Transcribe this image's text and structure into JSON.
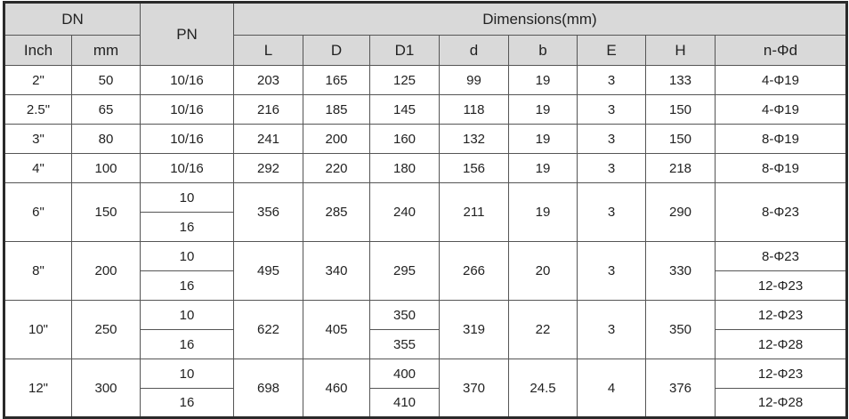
{
  "header": {
    "dn": "DN",
    "pn": "PN",
    "dimensions": "Dimensions(mm)",
    "inch": "Inch",
    "mm": "mm",
    "cols": [
      "L",
      "D",
      "D1",
      "d",
      "b",
      "E",
      "H",
      "n-Φd"
    ]
  },
  "rows": [
    {
      "inch": "2\"",
      "mm": "50",
      "pn": [
        "10/16"
      ],
      "L": "203",
      "D": "165",
      "D1": [
        "125"
      ],
      "d": "99",
      "b": "19",
      "E": "3",
      "H": "133",
      "nd": [
        "4-Φ19"
      ]
    },
    {
      "inch": "2.5\"",
      "mm": "65",
      "pn": [
        "10/16"
      ],
      "L": "216",
      "D": "185",
      "D1": [
        "145"
      ],
      "d": "118",
      "b": "19",
      "E": "3",
      "H": "150",
      "nd": [
        "4-Φ19"
      ]
    },
    {
      "inch": "3\"",
      "mm": "80",
      "pn": [
        "10/16"
      ],
      "L": "241",
      "D": "200",
      "D1": [
        "160"
      ],
      "d": "132",
      "b": "19",
      "E": "3",
      "H": "150",
      "nd": [
        "8-Φ19"
      ]
    },
    {
      "inch": "4\"",
      "mm": "100",
      "pn": [
        "10/16"
      ],
      "L": "292",
      "D": "220",
      "D1": [
        "180"
      ],
      "d": "156",
      "b": "19",
      "E": "3",
      "H": "218",
      "nd": [
        "8-Φ19"
      ]
    },
    {
      "inch": "6\"",
      "mm": "150",
      "pn": [
        "10",
        "16"
      ],
      "L": "356",
      "D": "285",
      "D1": [
        "240"
      ],
      "d": "211",
      "b": "19",
      "E": "3",
      "H": "290",
      "nd": [
        "8-Φ23"
      ]
    },
    {
      "inch": "8\"",
      "mm": "200",
      "pn": [
        "10",
        "16"
      ],
      "L": "495",
      "D": "340",
      "D1": [
        "295"
      ],
      "d": "266",
      "b": "20",
      "E": "3",
      "H": "330",
      "nd": [
        "8-Φ23",
        "12-Φ23"
      ]
    },
    {
      "inch": "10\"",
      "mm": "250",
      "pn": [
        "10",
        "16"
      ],
      "L": "622",
      "D": "405",
      "D1": [
        "350",
        "355"
      ],
      "d": "319",
      "b": "22",
      "E": "3",
      "H": "350",
      "nd": [
        "12-Φ23",
        "12-Φ28"
      ]
    },
    {
      "inch": "12\"",
      "mm": "300",
      "pn": [
        "10",
        "16"
      ],
      "L": "698",
      "D": "460",
      "D1": [
        "400",
        "410"
      ],
      "d": "370",
      "b": "24.5",
      "E": "4",
      "H": "376",
      "nd": [
        "12-Φ23",
        "12-Φ28"
      ]
    }
  ]
}
